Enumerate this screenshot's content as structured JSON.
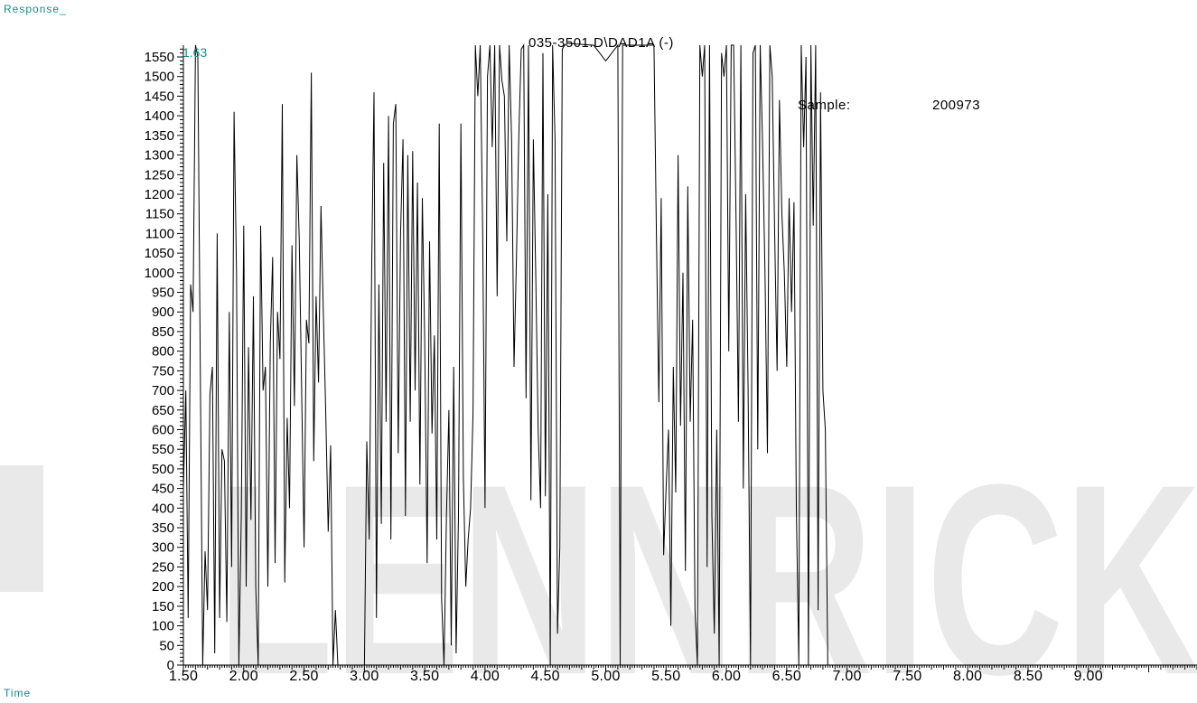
{
  "chart_data": {
    "type": "line",
    "title": "035-3501.D\\DAD1A (-)",
    "ylabel": "Response_",
    "xlabel": "Time",
    "marker_label": "1.63",
    "annotation": {
      "label": "Sample:",
      "value": "200973"
    },
    "watermark": "LENNRICK",
    "xlim": [
      1.5,
      9.9
    ],
    "ylim": [
      0,
      1580
    ],
    "x_ticks": [
      "1.50",
      "2.00",
      "2.50",
      "3.00",
      "3.50",
      "4.00",
      "4.50",
      "5.00",
      "5.50",
      "6.00",
      "6.50",
      "7.00",
      "7.50",
      "8.00",
      "8.50",
      "9.00"
    ],
    "y_ticks": [
      0,
      50,
      100,
      150,
      200,
      250,
      300,
      350,
      400,
      450,
      500,
      550,
      600,
      650,
      700,
      750,
      800,
      850,
      900,
      950,
      1000,
      1050,
      1100,
      1150,
      1200,
      1250,
      1300,
      1350,
      1400,
      1450,
      1500,
      1550
    ],
    "grid": false,
    "colors": {
      "line": "#000000",
      "label": "#1a8a8a",
      "watermark": "#e6e6e6"
    },
    "series": [
      {
        "points": [
          [
            1.5,
            450
          ],
          [
            1.52,
            700
          ],
          [
            1.54,
            120
          ],
          [
            1.56,
            970
          ],
          [
            1.58,
            900
          ],
          [
            1.6,
            1580
          ],
          [
            1.62,
            1550
          ],
          [
            1.64,
            760
          ],
          [
            1.66,
            0
          ],
          [
            1.68,
            290
          ],
          [
            1.7,
            140
          ],
          [
            1.72,
            690
          ],
          [
            1.74,
            760
          ],
          [
            1.76,
            30
          ],
          [
            1.78,
            1100
          ],
          [
            1.8,
            120
          ],
          [
            1.82,
            550
          ],
          [
            1.84,
            520
          ],
          [
            1.86,
            110
          ],
          [
            1.88,
            900
          ],
          [
            1.9,
            250
          ],
          [
            1.92,
            1410
          ],
          [
            1.94,
            1000
          ],
          [
            1.96,
            0
          ],
          [
            1.98,
            380
          ],
          [
            2.0,
            1120
          ],
          [
            2.02,
            200
          ],
          [
            2.04,
            810
          ],
          [
            2.06,
            370
          ],
          [
            2.08,
            940
          ],
          [
            2.1,
            200
          ],
          [
            2.12,
            0
          ],
          [
            2.14,
            1120
          ],
          [
            2.16,
            700
          ],
          [
            2.18,
            760
          ],
          [
            2.2,
            200
          ],
          [
            2.22,
            820
          ],
          [
            2.24,
            1040
          ],
          [
            2.26,
            260
          ],
          [
            2.28,
            900
          ],
          [
            2.3,
            780
          ],
          [
            2.32,
            1430
          ],
          [
            2.34,
            210
          ],
          [
            2.36,
            630
          ],
          [
            2.38,
            400
          ],
          [
            2.4,
            1070
          ],
          [
            2.42,
            660
          ],
          [
            2.44,
            1300
          ],
          [
            2.46,
            1090
          ],
          [
            2.48,
            700
          ],
          [
            2.5,
            300
          ],
          [
            2.52,
            880
          ],
          [
            2.54,
            820
          ],
          [
            2.56,
            1510
          ],
          [
            2.58,
            520
          ],
          [
            2.6,
            940
          ],
          [
            2.62,
            720
          ],
          [
            2.64,
            1170
          ],
          [
            2.66,
            900
          ],
          [
            2.68,
            640
          ],
          [
            2.7,
            340
          ],
          [
            2.72,
            560
          ],
          [
            2.74,
            0
          ],
          [
            2.76,
            140
          ],
          [
            2.78,
            0
          ],
          [
            3.0,
            0
          ],
          [
            3.02,
            570
          ],
          [
            3.04,
            320
          ],
          [
            3.06,
            1010
          ],
          [
            3.08,
            1460
          ],
          [
            3.1,
            120
          ],
          [
            3.12,
            970
          ],
          [
            3.14,
            360
          ],
          [
            3.16,
            1280
          ],
          [
            3.18,
            620
          ],
          [
            3.2,
            1400
          ],
          [
            3.22,
            320
          ],
          [
            3.24,
            1380
          ],
          [
            3.26,
            1430
          ],
          [
            3.28,
            540
          ],
          [
            3.3,
            1100
          ],
          [
            3.32,
            1340
          ],
          [
            3.34,
            380
          ],
          [
            3.36,
            1300
          ],
          [
            3.38,
            620
          ],
          [
            3.4,
            1310
          ],
          [
            3.42,
            700
          ],
          [
            3.44,
            1230
          ],
          [
            3.46,
            460
          ],
          [
            3.48,
            1190
          ],
          [
            3.5,
            830
          ],
          [
            3.52,
            260
          ],
          [
            3.54,
            1080
          ],
          [
            3.56,
            590
          ],
          [
            3.58,
            840
          ],
          [
            3.6,
            320
          ],
          [
            3.62,
            1380
          ],
          [
            3.64,
            170
          ],
          [
            3.66,
            0
          ],
          [
            3.68,
            380
          ],
          [
            3.7,
            650
          ],
          [
            3.72,
            50
          ],
          [
            3.74,
            760
          ],
          [
            3.76,
            30
          ],
          [
            3.78,
            380
          ],
          [
            3.8,
            1380
          ],
          [
            3.82,
            480
          ],
          [
            3.84,
            200
          ],
          [
            3.86,
            320
          ],
          [
            3.88,
            400
          ],
          [
            3.9,
            640
          ],
          [
            3.92,
            1580
          ],
          [
            3.94,
            1450
          ],
          [
            3.96,
            1580
          ],
          [
            3.98,
            1100
          ],
          [
            4.0,
            400
          ],
          [
            4.02,
            1500
          ],
          [
            4.04,
            1580
          ],
          [
            4.06,
            1320
          ],
          [
            4.08,
            1580
          ],
          [
            4.1,
            940
          ],
          [
            4.12,
            1580
          ],
          [
            4.14,
            1490
          ],
          [
            4.16,
            1450
          ],
          [
            4.18,
            1080
          ],
          [
            4.2,
            1580
          ],
          [
            4.22,
            1340
          ],
          [
            4.24,
            760
          ],
          [
            4.26,
            1040
          ],
          [
            4.28,
            1350
          ],
          [
            4.3,
            1570
          ],
          [
            4.32,
            1580
          ],
          [
            4.34,
            680
          ],
          [
            4.36,
            1580
          ],
          [
            4.38,
            420
          ],
          [
            4.4,
            1340
          ],
          [
            4.42,
            1000
          ],
          [
            4.44,
            600
          ],
          [
            4.46,
            400
          ],
          [
            4.48,
            1560
          ],
          [
            4.5,
            430
          ],
          [
            4.52,
            1200
          ],
          [
            4.54,
            0
          ],
          [
            4.56,
            1580
          ],
          [
            4.58,
            1340
          ],
          [
            4.6,
            80
          ],
          [
            4.62,
            300
          ],
          [
            4.64,
            1570
          ],
          [
            4.66,
            1580
          ],
          [
            4.68,
            1590
          ],
          [
            4.9,
            1580
          ],
          [
            5.0,
            1540
          ],
          [
            5.1,
            1580
          ],
          [
            5.12,
            0
          ],
          [
            5.14,
            1580
          ],
          [
            5.4,
            1580
          ],
          [
            5.42,
            1100
          ],
          [
            5.44,
            670
          ],
          [
            5.46,
            1190
          ],
          [
            5.48,
            280
          ],
          [
            5.5,
            450
          ],
          [
            5.52,
            600
          ],
          [
            5.54,
            100
          ],
          [
            5.56,
            760
          ],
          [
            5.58,
            440
          ],
          [
            5.6,
            1300
          ],
          [
            5.62,
            610
          ],
          [
            5.64,
            1000
          ],
          [
            5.66,
            240
          ],
          [
            5.68,
            1220
          ],
          [
            5.7,
            620
          ],
          [
            5.72,
            880
          ],
          [
            5.74,
            140
          ],
          [
            5.76,
            0
          ],
          [
            5.78,
            1580
          ],
          [
            5.8,
            1500
          ],
          [
            5.82,
            1580
          ],
          [
            5.84,
            250
          ],
          [
            5.86,
            1580
          ],
          [
            5.88,
            380
          ],
          [
            5.9,
            80
          ],
          [
            5.92,
            600
          ],
          [
            5.94,
            0
          ],
          [
            5.96,
            1560
          ],
          [
            5.98,
            1500
          ],
          [
            6.0,
            1580
          ],
          [
            6.02,
            800
          ],
          [
            6.04,
            1580
          ],
          [
            6.06,
            1580
          ],
          [
            6.08,
            1130
          ],
          [
            6.1,
            620
          ],
          [
            6.12,
            1580
          ],
          [
            6.14,
            450
          ],
          [
            6.16,
            1200
          ],
          [
            6.18,
            700
          ],
          [
            6.2,
            0
          ],
          [
            6.22,
            1560
          ],
          [
            6.24,
            1580
          ],
          [
            6.26,
            550
          ],
          [
            6.28,
            1580
          ],
          [
            6.3,
            1330
          ],
          [
            6.32,
            1000
          ],
          [
            6.34,
            540
          ],
          [
            6.36,
            1580
          ],
          [
            6.38,
            1500
          ],
          [
            6.4,
            1100
          ],
          [
            6.42,
            750
          ],
          [
            6.44,
            1440
          ],
          [
            6.46,
            1150
          ],
          [
            6.48,
            1000
          ],
          [
            6.5,
            760
          ],
          [
            6.52,
            1190
          ],
          [
            6.54,
            900
          ],
          [
            6.56,
            1180
          ],
          [
            6.58,
            400
          ],
          [
            6.6,
            0
          ],
          [
            6.62,
            1580
          ],
          [
            6.64,
            1320
          ],
          [
            6.66,
            1550
          ],
          [
            6.68,
            0
          ],
          [
            6.7,
            1580
          ],
          [
            6.72,
            1120
          ],
          [
            6.74,
            1580
          ],
          [
            6.76,
            140
          ],
          [
            6.78,
            1460
          ],
          [
            6.8,
            700
          ],
          [
            6.82,
            600
          ],
          [
            6.84,
            0
          ]
        ]
      }
    ]
  }
}
